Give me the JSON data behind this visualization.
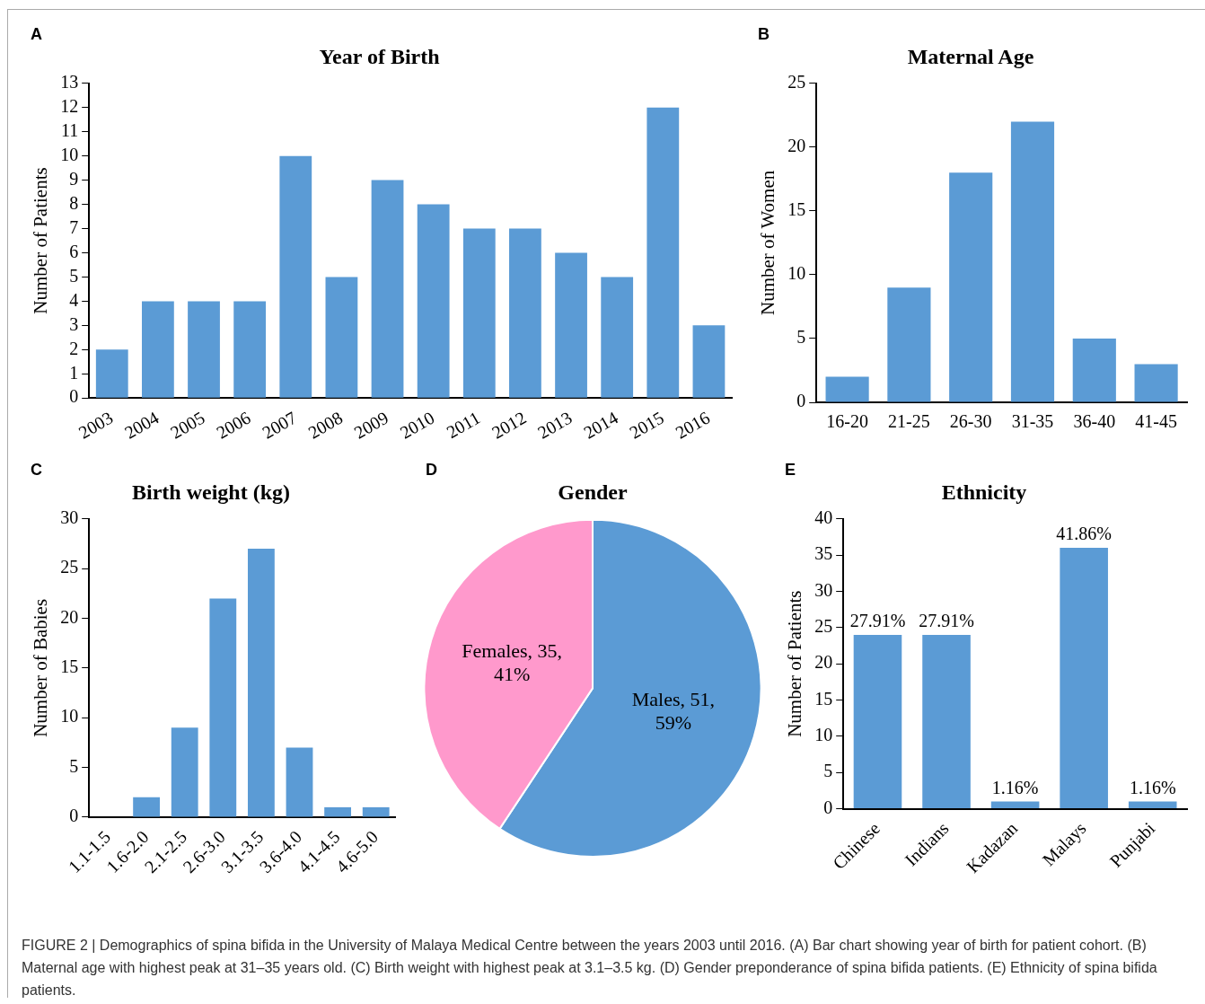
{
  "chart_data": [
    {
      "type": "bar",
      "title": "Year of Birth",
      "ylabel": "Number of Patients",
      "annotations": [
        "A"
      ],
      "categories": [
        "2003",
        "2004",
        "2005",
        "2006",
        "2007",
        "2008",
        "2009",
        "2010",
        "2011",
        "2012",
        "2013",
        "2014",
        "2015",
        "2016"
      ],
      "values": [
        2,
        4,
        4,
        4,
        10,
        5,
        9,
        8,
        7,
        7,
        6,
        5,
        12,
        3
      ],
      "color": "#5b9bd5",
      "ylim": [
        0,
        13
      ],
      "yticks": [
        0,
        1,
        2,
        3,
        4,
        5,
        6,
        7,
        8,
        9,
        10,
        11,
        12,
        13
      ],
      "grid": false,
      "legend": false
    },
    {
      "type": "bar",
      "title": "Maternal Age",
      "ylabel": "Number of Women",
      "annotations": [
        "B"
      ],
      "categories": [
        "16-20",
        "21-25",
        "26-30",
        "31-35",
        "36-40",
        "41-45"
      ],
      "values": [
        2,
        9,
        18,
        22,
        5,
        3
      ],
      "color": "#5b9bd5",
      "ylim": [
        0,
        25
      ],
      "yticks": [
        0,
        5,
        10,
        15,
        20,
        25
      ],
      "grid": false,
      "legend": false
    },
    {
      "type": "bar",
      "title": "Birth weight (kg)",
      "ylabel": "Number of Babies",
      "annotations": [
        "C"
      ],
      "categories": [
        "1.1-1.5",
        "1.6-2.0",
        "2.1-2.5",
        "2.6-3.0",
        "3.1-3.5",
        "3.6-4.0",
        "4.1-4.5",
        "4.6-5.0"
      ],
      "values": [
        0,
        2,
        9,
        22,
        27,
        7,
        1,
        1
      ],
      "color": "#5b9bd5",
      "ylim": [
        0,
        30
      ],
      "yticks": [
        0,
        5,
        10,
        15,
        20,
        25,
        30
      ],
      "grid": false,
      "legend": false
    },
    {
      "type": "pie",
      "title": "Gender",
      "annotations": [
        "D"
      ],
      "categories": [
        "Males",
        "Females"
      ],
      "values": [
        51,
        35
      ],
      "colors": [
        "#5b9bd5",
        "#ff99cc"
      ],
      "value_labels": [
        ", 51, 59%",
        ", 35, 41%"
      ],
      "legend": false
    },
    {
      "type": "bar",
      "title": "Ethnicity",
      "ylabel": "Number of Patients",
      "annotations": [
        "E",
        {
          "text": "27.91%",
          "x": "Chinese",
          "y": 24
        },
        {
          "text": "27.91%",
          "x": "Indians",
          "y": 24
        },
        {
          "text": "1.16%",
          "x": "Kadazan",
          "y": 1
        },
        {
          "text": "41.86%",
          "x": "Malays",
          "y": 36
        },
        {
          "text": "1.16%",
          "x": "Punjabi",
          "y": 1
        },
        "FIGURE 2 | Demographics of spina bifida in the University of Malaya Medical Centre between the years 2003 until 2016. (A) Bar chart showing year of birth for patient cohort. (B) Maternal age with highest peak at 31–35 years old. (C) Birth weight with highest peak at 3.1–3.5 kg. (D) Gender preponderance of spina bifida patients. (E) Ethnicity of spina bifida patients."
      ],
      "categories": [
        "Chinese",
        "Indians",
        "Kadazan",
        "Malays",
        "Punjabi"
      ],
      "values": [
        24,
        24,
        1,
        36,
        1
      ],
      "color": "#5b9bd5",
      "ylim": [
        0,
        40
      ],
      "yticks": [
        0,
        5,
        10,
        15,
        20,
        25,
        30,
        35,
        40
      ],
      "grid": false,
      "legend": false
    }
  ]
}
